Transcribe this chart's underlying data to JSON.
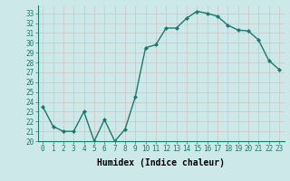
{
  "x": [
    0,
    1,
    2,
    3,
    4,
    5,
    6,
    7,
    8,
    9,
    10,
    11,
    12,
    13,
    14,
    15,
    16,
    17,
    18,
    19,
    20,
    21,
    22,
    23
  ],
  "y": [
    23.5,
    21.5,
    21.0,
    21.0,
    23.0,
    20.0,
    22.2,
    20.0,
    21.2,
    24.5,
    29.5,
    29.8,
    31.5,
    31.5,
    32.5,
    33.2,
    33.0,
    32.7,
    31.8,
    31.3,
    31.2,
    30.3,
    28.2,
    27.3
  ],
  "line_color": "#1a7a6e",
  "marker": "D",
  "marker_size": 2.0,
  "line_width": 1.0,
  "xlabel": "Humidex (Indice chaleur)",
  "ylim": [
    20,
    33.8
  ],
  "xlim": [
    -0.5,
    23.5
  ],
  "yticks": [
    20,
    21,
    22,
    23,
    24,
    25,
    26,
    27,
    28,
    29,
    30,
    31,
    32,
    33
  ],
  "xticks": [
    0,
    1,
    2,
    3,
    4,
    5,
    6,
    7,
    8,
    9,
    10,
    11,
    12,
    13,
    14,
    15,
    16,
    17,
    18,
    19,
    20,
    21,
    22,
    23
  ],
  "bg_color": "#cce8e8",
  "grid_color": "#b8d8d8",
  "tick_label_fontsize": 5.5,
  "xlabel_fontsize": 7.0
}
